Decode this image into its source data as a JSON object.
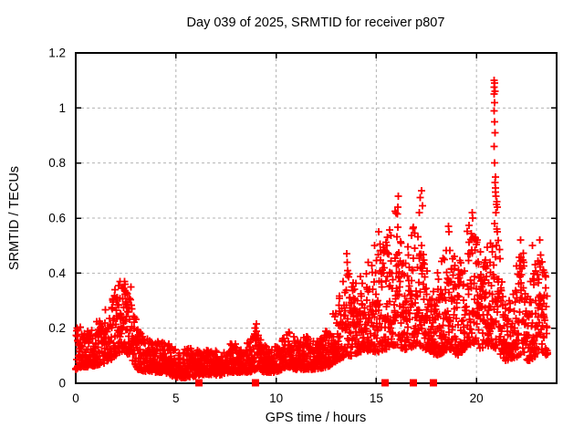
{
  "chart_data": {
    "type": "scatter",
    "title": "Day 039 of 2025, SRMTID for receiver p807",
    "xlabel": "GPS time / hours",
    "ylabel": "SRMTID / TECUs",
    "series_name": "SRMTID",
    "xlim": [
      0,
      24
    ],
    "ylim": [
      0,
      1.2
    ],
    "xticks": [
      0,
      5,
      10,
      15,
      20
    ],
    "xtick_labels": [
      "0",
      "5",
      "10",
      "15",
      "20"
    ],
    "yticks": [
      0,
      0.2,
      0.4,
      0.6,
      0.8,
      1,
      1.2
    ],
    "ytick_labels": [
      "0",
      "0.2",
      "0.4",
      "0.6",
      "0.8",
      "1",
      "1.2"
    ],
    "grid": {
      "on": true,
      "color": "#b3b3b3",
      "dash": "3 3",
      "x_at": [
        5,
        10,
        15,
        20
      ],
      "y_at": [
        0.2,
        0.4,
        0.6,
        0.8,
        1.0
      ]
    },
    "border_color": "#000000",
    "marker": {
      "shape": "plus",
      "half_size": 4,
      "stroke_width": 1.8,
      "color": "#ff0000"
    },
    "sampling": {
      "t_start": 0.0,
      "t_end": 23.55,
      "points_per_hour": 110,
      "seed": 39,
      "skew_power": 1.6
    },
    "envelope": [
      [
        0.0,
        0.05,
        0.24
      ],
      [
        0.35,
        0.06,
        0.18
      ],
      [
        0.8,
        0.06,
        0.2
      ],
      [
        1.3,
        0.07,
        0.24
      ],
      [
        1.7,
        0.08,
        0.28
      ],
      [
        2.0,
        0.1,
        0.34
      ],
      [
        2.4,
        0.12,
        0.36
      ],
      [
        2.8,
        0.09,
        0.33
      ],
      [
        3.1,
        0.05,
        0.2
      ],
      [
        3.5,
        0.04,
        0.16
      ],
      [
        4.2,
        0.04,
        0.14
      ],
      [
        4.7,
        0.03,
        0.15
      ],
      [
        5.1,
        0.02,
        0.1
      ],
      [
        5.6,
        0.02,
        0.13
      ],
      [
        6.2,
        0.03,
        0.12
      ],
      [
        6.7,
        0.03,
        0.11
      ],
      [
        7.2,
        0.03,
        0.12
      ],
      [
        7.7,
        0.04,
        0.14
      ],
      [
        8.2,
        0.04,
        0.13
      ],
      [
        8.7,
        0.04,
        0.15
      ],
      [
        9.0,
        0.05,
        0.2
      ],
      [
        9.4,
        0.04,
        0.13
      ],
      [
        10.0,
        0.04,
        0.13
      ],
      [
        10.6,
        0.06,
        0.19
      ],
      [
        11.0,
        0.05,
        0.15
      ],
      [
        11.5,
        0.05,
        0.18
      ],
      [
        12.0,
        0.05,
        0.15
      ],
      [
        12.6,
        0.06,
        0.2
      ],
      [
        13.0,
        0.08,
        0.27
      ],
      [
        13.5,
        0.1,
        0.44
      ],
      [
        13.9,
        0.1,
        0.36
      ],
      [
        14.4,
        0.12,
        0.42
      ],
      [
        14.9,
        0.11,
        0.47
      ],
      [
        15.4,
        0.12,
        0.5
      ],
      [
        16.0,
        0.14,
        0.6
      ],
      [
        16.4,
        0.12,
        0.45
      ],
      [
        17.1,
        0.14,
        0.6
      ],
      [
        17.5,
        0.12,
        0.42
      ],
      [
        18.0,
        0.1,
        0.38
      ],
      [
        18.6,
        0.12,
        0.52
      ],
      [
        19.1,
        0.1,
        0.42
      ],
      [
        19.6,
        0.14,
        0.56
      ],
      [
        19.9,
        0.14,
        0.6
      ],
      [
        20.3,
        0.12,
        0.46
      ],
      [
        20.7,
        0.14,
        0.55
      ],
      [
        21.0,
        0.12,
        0.6
      ],
      [
        21.4,
        0.08,
        0.28
      ],
      [
        21.8,
        0.09,
        0.32
      ],
      [
        22.2,
        0.1,
        0.5
      ],
      [
        22.6,
        0.08,
        0.36
      ],
      [
        23.0,
        0.1,
        0.45
      ],
      [
        23.2,
        0.12,
        0.5
      ],
      [
        23.45,
        0.1,
        0.38
      ],
      [
        23.55,
        0.1,
        0.3
      ]
    ],
    "outliers": [
      [
        1.95,
        0.34
      ],
      [
        2.15,
        0.355
      ],
      [
        2.2,
        0.37
      ],
      [
        2.32,
        0.345
      ],
      [
        2.45,
        0.36
      ],
      [
        2.75,
        0.35
      ],
      [
        9.02,
        0.215
      ],
      [
        13.52,
        0.47
      ],
      [
        14.92,
        0.5
      ],
      [
        15.12,
        0.55
      ],
      [
        15.55,
        0.53
      ],
      [
        16.05,
        0.615
      ],
      [
        16.08,
        0.64
      ],
      [
        16.1,
        0.68
      ],
      [
        17.15,
        0.62
      ],
      [
        17.2,
        0.675
      ],
      [
        17.25,
        0.7
      ],
      [
        17.3,
        0.645
      ],
      [
        18.6,
        0.57
      ],
      [
        18.63,
        0.55
      ],
      [
        19.78,
        0.62
      ],
      [
        19.82,
        0.6
      ],
      [
        20.87,
        1.1
      ],
      [
        20.9,
        1.09
      ],
      [
        20.88,
        1.075
      ],
      [
        20.92,
        1.06
      ],
      [
        20.89,
        1.05
      ],
      [
        20.91,
        1.02
      ],
      [
        20.88,
        0.99
      ],
      [
        20.9,
        0.95
      ],
      [
        20.93,
        0.91
      ],
      [
        20.87,
        0.86
      ],
      [
        20.9,
        0.8
      ],
      [
        20.95,
        0.75
      ],
      [
        20.92,
        0.73
      ],
      [
        20.96,
        0.71
      ],
      [
        20.94,
        0.695
      ],
      [
        20.98,
        0.68
      ],
      [
        21.02,
        0.66
      ],
      [
        21.0,
        0.65
      ],
      [
        21.05,
        0.64
      ],
      [
        20.97,
        0.62
      ],
      [
        22.2,
        0.52
      ],
      [
        22.8,
        0.5
      ],
      [
        23.15,
        0.52
      ]
    ],
    "zero_markers": {
      "shape": "filled-square",
      "size": 8,
      "color": "#ff0000",
      "hours": [
        6.15,
        8.97,
        15.44,
        16.85,
        17.85
      ]
    }
  }
}
